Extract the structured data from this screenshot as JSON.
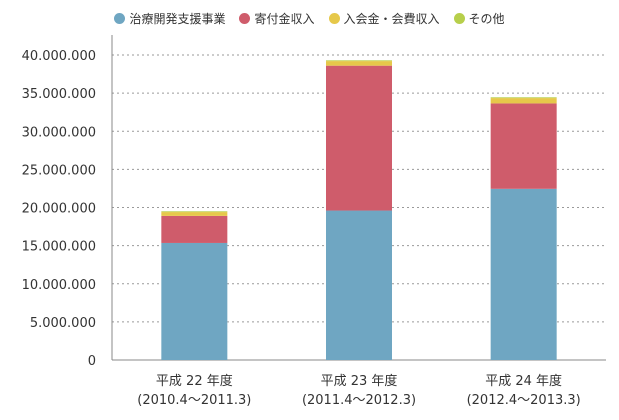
{
  "chart_data": {
    "type": "bar",
    "stacked": true,
    "categories": [
      {
        "line1": "平成 22 年度",
        "line2": "(2010.4〜2011.3)"
      },
      {
        "line1": "平成 23 年度",
        "line2": "(2011.4〜2012.3)"
      },
      {
        "line1": "平成 24 年度",
        "line2": "(2012.4〜2013.3)"
      }
    ],
    "series": [
      {
        "name": "治療開発支援事業",
        "color": "#6fa6c2",
        "values": [
          15350000,
          19600000,
          22450000
        ]
      },
      {
        "name": "寄付金収入",
        "color": "#cf5c6b",
        "values": [
          3550000,
          19000000,
          11200000
        ]
      },
      {
        "name": "入会金・会費収入",
        "color": "#e6c84a",
        "values": [
          500000,
          600000,
          700000
        ]
      },
      {
        "name": "その他",
        "color": "#b7cf4b",
        "values": [
          100000,
          100000,
          100000
        ]
      }
    ],
    "yticks": [
      "0",
      "5.000.000",
      "10.000.000",
      "15.000.000",
      "20.000.000",
      "25.000.000",
      "30.000.000",
      "35.000.000",
      "40.000.000"
    ],
    "ylim": [
      0,
      40000000
    ],
    "grid": true,
    "legend_position": "top"
  }
}
